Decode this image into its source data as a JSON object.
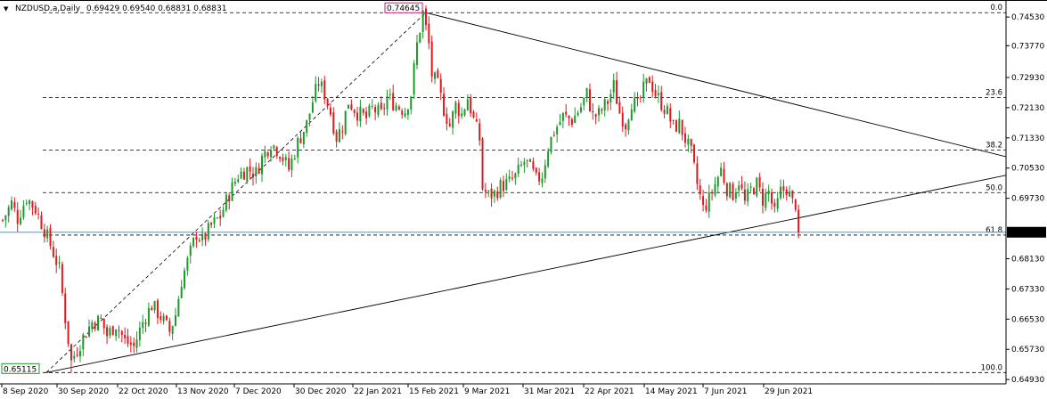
{
  "header": {
    "symbol": "NZDUSD.a,Daily",
    "ohlc": "0.69429 0.69540 0.68831 0.68831",
    "arrow": "▼"
  },
  "chart_data": {
    "type": "candlestick",
    "symbol": "NZDUSD.a",
    "timeframe": "Daily",
    "ylim": [
      0.6491,
      0.7491
    ],
    "y_ticks": [
      "0.74530",
      "0.73770",
      "0.72930",
      "0.72130",
      "0.71330",
      "0.70530",
      "0.69730",
      "0.68831",
      "0.68130",
      "0.67330",
      "0.66530",
      "0.65730",
      "0.64930"
    ],
    "x_ticks": [
      "8 Sep 2020",
      "30 Sep 2020",
      "22 Oct 2020",
      "13 Nov 2020",
      "7 Dec 2020",
      "30 Dec 2020",
      "22 Jan 2021",
      "15 Feb 2021",
      "9 Mar 2021",
      "31 Mar 2021",
      "22 Apr 2021",
      "14 May 2021",
      "7 Jun 2021",
      "29 Jun 2021"
    ],
    "last_price": 0.68831,
    "price_labels": {
      "high": "0.74645",
      "low": "0.65115",
      "current": "0.68831"
    },
    "fib_levels": [
      {
        "level": "0.0",
        "price": 0.74645
      },
      {
        "level": "23.6",
        "price": 0.72396
      },
      {
        "level": "38.2",
        "price": 0.71004
      },
      {
        "level": "50.0",
        "price": 0.6988
      },
      {
        "level": "61.8",
        "price": 0.68756
      },
      {
        "level": "100.0",
        "price": 0.65115
      }
    ],
    "trendlines": [
      {
        "from": [
          "8 Sep 2020",
          0.65115
        ],
        "to": [
          "15 Feb 2021",
          0.74645
        ],
        "style": "dashed"
      },
      {
        "from": [
          "15 Feb 2021",
          0.74645
        ],
        "to": [
          "right edge",
          0.7088
        ],
        "style": "solid"
      },
      {
        "from": [
          "8 Sep 2020",
          0.65115
        ],
        "to": [
          "right edge",
          0.7034
        ],
        "style": "solid"
      }
    ],
    "path_points": [
      [
        0,
        0.6915
      ],
      [
        3,
        0.696
      ],
      [
        5,
        0.692
      ],
      [
        8,
        0.6975
      ],
      [
        11,
        0.6945
      ],
      [
        14,
        0.689
      ],
      [
        16,
        0.685
      ],
      [
        19,
        0.6785
      ],
      [
        21,
        0.6655
      ],
      [
        23,
        0.654
      ],
      [
        25,
        0.6575
      ],
      [
        27,
        0.6605
      ],
      [
        30,
        0.6645
      ],
      [
        33,
        0.665
      ],
      [
        35,
        0.661
      ],
      [
        38,
        0.664
      ],
      [
        41,
        0.6595
      ],
      [
        44,
        0.658
      ],
      [
        47,
        0.6645
      ],
      [
        50,
        0.669
      ],
      [
        53,
        0.666
      ],
      [
        56,
        0.662
      ],
      [
        58,
        0.6665
      ],
      [
        60,
        0.6755
      ],
      [
        63,
        0.683
      ],
      [
        65,
        0.688
      ],
      [
        67,
        0.686
      ],
      [
        70,
        0.69
      ],
      [
        73,
        0.6925
      ],
      [
        76,
        0.6985
      ],
      [
        79,
        0.7035
      ],
      [
        82,
        0.705
      ],
      [
        85,
        0.704
      ],
      [
        87,
        0.708
      ],
      [
        90,
        0.712
      ],
      [
        93,
        0.7095
      ],
      [
        96,
        0.705
      ],
      [
        99,
        0.712
      ],
      [
        102,
        0.717
      ],
      [
        104,
        0.723
      ],
      [
        106,
        0.728
      ],
      [
        108,
        0.725
      ],
      [
        110,
        0.72
      ],
      [
        112,
        0.7135
      ],
      [
        114,
        0.7165
      ],
      [
        116,
        0.723
      ],
      [
        119,
        0.72
      ],
      [
        122,
        0.7185
      ],
      [
        124,
        0.721
      ],
      [
        127,
        0.7195
      ],
      [
        129,
        0.724
      ],
      [
        132,
        0.722
      ],
      [
        135,
        0.7205
      ],
      [
        137,
        0.725
      ],
      [
        139,
        0.738
      ],
      [
        141,
        0.7465
      ],
      [
        143,
        0.738
      ],
      [
        144,
        0.73
      ],
      [
        146,
        0.727
      ],
      [
        148,
        0.721
      ],
      [
        150,
        0.7165
      ],
      [
        152,
        0.722
      ],
      [
        154,
        0.7195
      ],
      [
        156,
        0.724
      ],
      [
        158,
        0.718
      ],
      [
        160,
        0.713
      ],
      [
        161,
        0.7
      ],
      [
        163,
        0.698
      ],
      [
        165,
        0.6985
      ],
      [
        167,
        0.7005
      ],
      [
        170,
        0.7015
      ],
      [
        172,
        0.703
      ],
      [
        175,
        0.707
      ],
      [
        177,
        0.7055
      ],
      [
        179,
        0.702
      ],
      [
        181,
        0.7035
      ],
      [
        183,
        0.711
      ],
      [
        185,
        0.715
      ],
      [
        188,
        0.719
      ],
      [
        191,
        0.718
      ],
      [
        194,
        0.7215
      ],
      [
        196,
        0.725
      ],
      [
        198,
        0.719
      ],
      [
        200,
        0.7195
      ],
      [
        203,
        0.723
      ],
      [
        205,
        0.727
      ],
      [
        207,
        0.72
      ],
      [
        209,
        0.717
      ],
      [
        211,
        0.723
      ],
      [
        213,
        0.7215
      ],
      [
        215,
        0.726
      ],
      [
        217,
        0.729
      ],
      [
        219,
        0.725
      ],
      [
        221,
        0.7225
      ],
      [
        223,
        0.72
      ],
      [
        225,
        0.716
      ],
      [
        227,
        0.717
      ],
      [
        229,
        0.713
      ],
      [
        231,
        0.709
      ],
      [
        233,
        0.701
      ],
      [
        235,
        0.6945
      ],
      [
        237,
        0.697
      ],
      [
        239,
        0.701
      ],
      [
        241,
        0.705
      ],
      [
        243,
        0.7
      ],
      [
        245,
        0.6985
      ],
      [
        247,
        0.702
      ],
      [
        249,
        0.696
      ],
      [
        251,
        0.6995
      ],
      [
        253,
        0.701
      ],
      [
        255,
        0.697
      ],
      [
        257,
        0.699
      ],
      [
        259,
        0.693
      ],
      [
        261,
        0.699
      ],
      [
        263,
        0.7
      ],
      [
        265,
        0.696
      ],
      [
        266,
        0.6943
      ],
      [
        267,
        0.6883
      ]
    ]
  }
}
